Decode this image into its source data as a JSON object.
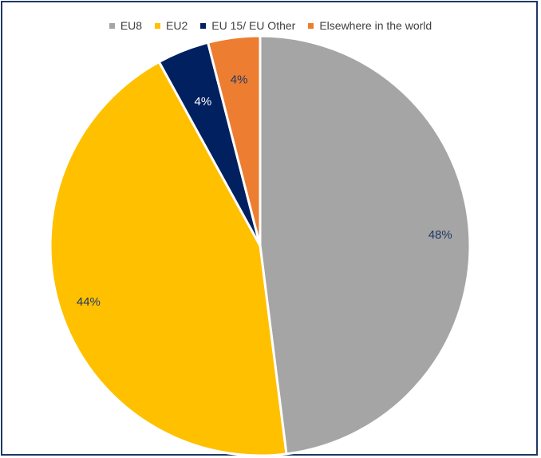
{
  "chart_data": {
    "type": "pie",
    "title": "",
    "legend_position": "top",
    "slices": [
      {
        "name": "EU8",
        "value": 48,
        "label": "48%",
        "color": "#a5a5a5",
        "label_color": "#1f3864"
      },
      {
        "name": "EU2",
        "value": 44,
        "label": "44%",
        "color": "#ffc000",
        "label_color": "#1f3864"
      },
      {
        "name": "EU 15/ EU Other",
        "value": 4,
        "label": "4%",
        "color": "#002060",
        "label_color": "#ffffff"
      },
      {
        "name": "Elsewhere in the world",
        "value": 4,
        "label": "4%",
        "color": "#ed7d31",
        "label_color": "#1f3864"
      }
    ]
  }
}
